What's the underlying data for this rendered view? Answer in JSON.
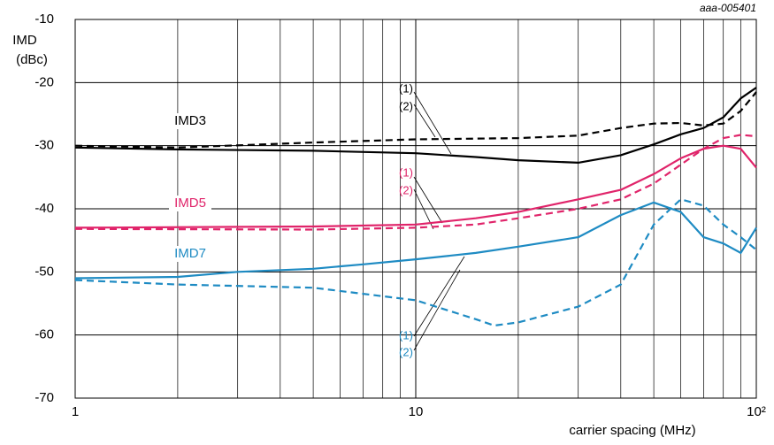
{
  "chart_data": {
    "type": "line",
    "id_label": "aaa-005401",
    "ylabel": [
      "IMD",
      "(dBc)"
    ],
    "xlabel": "carrier spacing (MHz)",
    "xlog": true,
    "grid": true,
    "xlim": [
      1,
      100
    ],
    "xticks": [
      1,
      10,
      {
        "value": 100,
        "label": "10²"
      }
    ],
    "xminor": [
      2,
      3,
      4,
      5,
      6,
      7,
      8,
      9,
      20,
      30,
      40,
      50,
      60,
      70,
      80,
      90
    ],
    "ylim": [
      -70,
      -10
    ],
    "yticks": [
      -70,
      -60,
      -50,
      -40,
      -30,
      -20,
      -10
    ],
    "series": [
      {
        "name": "IMD3 (1)",
        "color": "#000000",
        "dash": false,
        "x": [
          1,
          2,
          5,
          10,
          15,
          20,
          30,
          40,
          50,
          60,
          70,
          80,
          90,
          100
        ],
        "values": [
          -30.3,
          -30.6,
          -30.8,
          -31.2,
          -31.8,
          -32.3,
          -32.7,
          -31.5,
          -29.8,
          -28.2,
          -27.2,
          -25.5,
          -22.5,
          -20.8
        ]
      },
      {
        "name": "IMD3 (2)",
        "color": "#000000",
        "dash": true,
        "x": [
          1,
          2,
          5,
          10,
          20,
          30,
          40,
          50,
          60,
          70,
          80,
          90,
          100
        ],
        "values": [
          -30.0,
          -30.3,
          -29.5,
          -29.0,
          -28.8,
          -28.4,
          -27.2,
          -26.5,
          -26.4,
          -26.8,
          -26.5,
          -24.5,
          -21.5
        ]
      },
      {
        "name": "IMD5 (1)",
        "color": "#e0246a",
        "dash": false,
        "x": [
          1,
          5,
          10,
          15,
          20,
          30,
          40,
          50,
          60,
          70,
          80,
          90,
          100
        ],
        "values": [
          -43.0,
          -42.8,
          -42.5,
          -41.5,
          -40.5,
          -38.5,
          -37.0,
          -34.5,
          -32.0,
          -30.5,
          -30.0,
          -30.5,
          -33.5
        ]
      },
      {
        "name": "IMD5 (2)",
        "color": "#e0246a",
        "dash": true,
        "x": [
          1,
          5,
          10,
          15,
          20,
          30,
          40,
          50,
          60,
          70,
          80,
          90,
          100
        ],
        "values": [
          -43.2,
          -43.3,
          -43.0,
          -42.5,
          -41.5,
          -40.0,
          -38.5,
          -36.0,
          -33.0,
          -30.5,
          -28.8,
          -28.3,
          -28.5
        ]
      },
      {
        "name": "IMD7 (1)",
        "color": "#1e8bc3",
        "dash": false,
        "x": [
          1,
          2,
          3,
          5,
          7,
          10,
          15,
          20,
          30,
          40,
          50,
          60,
          70,
          80,
          90,
          100
        ],
        "values": [
          -51.0,
          -50.8,
          -50.0,
          -49.5,
          -48.8,
          -48.0,
          -47.0,
          -46.0,
          -44.5,
          -41.0,
          -39.0,
          -40.5,
          -44.5,
          -45.5,
          -47.0,
          -43.0
        ]
      },
      {
        "name": "IMD7 (2)",
        "color": "#1e8bc3",
        "dash": true,
        "x": [
          1,
          2,
          5,
          10,
          15,
          17,
          20,
          30,
          40,
          50,
          60,
          70,
          80,
          90,
          100
        ],
        "values": [
          -51.3,
          -52.0,
          -52.5,
          -54.5,
          -57.5,
          -58.5,
          -58.0,
          -55.5,
          -52.0,
          -42.5,
          -38.5,
          -39.5,
          -42.5,
          -44.5,
          -46.5
        ]
      }
    ],
    "annotations": [
      {
        "text": "IMD3",
        "color": "#000000"
      },
      {
        "text": "IMD5",
        "color": "#e0246a"
      },
      {
        "text": "IMD7",
        "color": "#1e8bc3"
      },
      {
        "text": "(1)",
        "color": "#000000"
      },
      {
        "text": "(2)",
        "color": "#000000"
      },
      {
        "text": "(1)",
        "color": "#e0246a"
      },
      {
        "text": "(2)",
        "color": "#e0246a"
      },
      {
        "text": "(1)",
        "color": "#1e8bc3"
      },
      {
        "text": "(2)",
        "color": "#1e8bc3"
      }
    ]
  }
}
